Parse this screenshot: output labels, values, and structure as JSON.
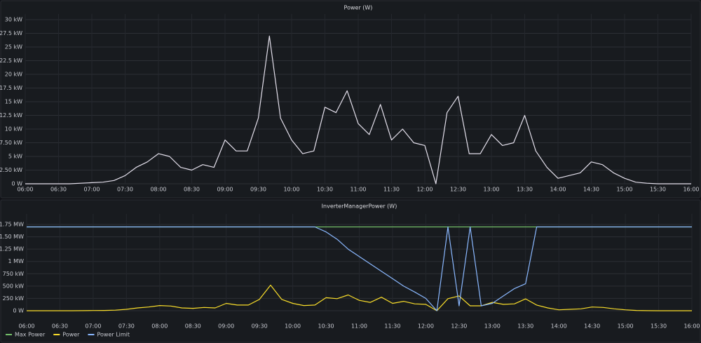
{
  "chart_data": [
    {
      "type": "line",
      "title": "Power (W)",
      "x": [
        "06:00",
        "06:10",
        "06:20",
        "06:30",
        "06:40",
        "06:50",
        "07:00",
        "07:10",
        "07:20",
        "07:30",
        "07:40",
        "07:50",
        "08:00",
        "08:10",
        "08:20",
        "08:30",
        "08:40",
        "08:50",
        "09:00",
        "09:10",
        "09:20",
        "09:30",
        "09:40",
        "09:50",
        "10:00",
        "10:10",
        "10:20",
        "10:30",
        "10:40",
        "10:50",
        "11:00",
        "11:10",
        "11:20",
        "11:30",
        "11:40",
        "11:50",
        "12:00",
        "12:10",
        "12:20",
        "12:30",
        "12:40",
        "12:50",
        "13:00",
        "13:10",
        "13:20",
        "13:30",
        "13:40",
        "13:50",
        "14:00",
        "14:10",
        "14:20",
        "14:30",
        "14:40",
        "14:50",
        "15:00",
        "15:10",
        "15:20",
        "15:30",
        "15:40",
        "15:50",
        "16:00"
      ],
      "series": [
        {
          "color": "#e4e0ec",
          "values": [
            0,
            0,
            0,
            0,
            0,
            100,
            200,
            300,
            600,
            1500,
            3000,
            4000,
            5500,
            5000,
            3000,
            2500,
            3500,
            3000,
            8000,
            6000,
            6000,
            12000,
            27000,
            12000,
            8000,
            5500,
            6000,
            14000,
            13000,
            17000,
            11000,
            9000,
            14500,
            8000,
            10000,
            7500,
            7000,
            0,
            13000,
            16000,
            5500,
            5500,
            9000,
            7000,
            7500,
            12500,
            6000,
            3000,
            1000,
            1500,
            2000,
            4000,
            3500,
            2000,
            1000,
            300,
            100,
            0,
            0,
            0,
            0
          ]
        }
      ],
      "xlim": [
        "06:00",
        "16:00"
      ],
      "xticks": [
        "06:00",
        "06:30",
        "07:00",
        "07:30",
        "08:00",
        "08:30",
        "09:00",
        "09:30",
        "10:00",
        "10:30",
        "11:00",
        "11:30",
        "12:00",
        "12:30",
        "13:00",
        "13:30",
        "14:00",
        "14:30",
        "15:00",
        "15:30",
        "16:00"
      ],
      "ylim": [
        0,
        30000
      ],
      "yticks": [
        {
          "value": 0,
          "label": "0 W"
        },
        {
          "value": 2500,
          "label": "2.50 kW"
        },
        {
          "value": 5000,
          "label": "5 kW"
        },
        {
          "value": 7500,
          "label": "7.50 kW"
        },
        {
          "value": 10000,
          "label": "10 kW"
        },
        {
          "value": 12500,
          "label": "12.5 kW"
        },
        {
          "value": 15000,
          "label": "15 kW"
        },
        {
          "value": 17500,
          "label": "17.5 kW"
        },
        {
          "value": 20000,
          "label": "20 kW"
        },
        {
          "value": 22500,
          "label": "22.5 kW"
        },
        {
          "value": 25000,
          "label": "25 kW"
        },
        {
          "value": 27500,
          "label": "27.5 kW"
        },
        {
          "value": 30000,
          "label": "30 kW"
        }
      ],
      "grid": true
    },
    {
      "type": "line",
      "title": "InverterManagerPower (W)",
      "x": [
        "06:00",
        "06:10",
        "06:20",
        "06:30",
        "06:40",
        "06:50",
        "07:00",
        "07:10",
        "07:20",
        "07:30",
        "07:40",
        "07:50",
        "08:00",
        "08:10",
        "08:20",
        "08:30",
        "08:40",
        "08:50",
        "09:00",
        "09:10",
        "09:20",
        "09:30",
        "09:40",
        "09:50",
        "10:00",
        "10:10",
        "10:20",
        "10:30",
        "10:40",
        "10:50",
        "11:00",
        "11:10",
        "11:20",
        "11:30",
        "11:40",
        "11:50",
        "12:00",
        "12:10",
        "12:20",
        "12:30",
        "12:40",
        "12:50",
        "13:00",
        "13:10",
        "13:20",
        "13:30",
        "13:40",
        "13:50",
        "14:00",
        "14:10",
        "14:20",
        "14:30",
        "14:40",
        "14:50",
        "15:00",
        "15:10",
        "15:20",
        "15:30",
        "15:40",
        "15:50",
        "16:00"
      ],
      "series": [
        {
          "name": "Max Power",
          "color": "#73bf69",
          "values": [
            1700000,
            1700000,
            1700000,
            1700000,
            1700000,
            1700000,
            1700000,
            1700000,
            1700000,
            1700000,
            1700000,
            1700000,
            1700000,
            1700000,
            1700000,
            1700000,
            1700000,
            1700000,
            1700000,
            1700000,
            1700000,
            1700000,
            1700000,
            1700000,
            1700000,
            1700000,
            1700000,
            1700000,
            1700000,
            1700000,
            1700000,
            1700000,
            1700000,
            1700000,
            1700000,
            1700000,
            1700000,
            1700000,
            1700000,
            1700000,
            1700000,
            1700000,
            1700000,
            1700000,
            1700000,
            1700000,
            1700000,
            1700000,
            1700000,
            1700000,
            1700000,
            1700000,
            1700000,
            1700000,
            1700000,
            1700000,
            1700000,
            1700000,
            1700000,
            1700000,
            1700000
          ]
        },
        {
          "name": "Power",
          "color": "#fade2a",
          "values": [
            0,
            0,
            0,
            0,
            0,
            2000,
            4000,
            6000,
            12000,
            28000,
            57000,
            76000,
            105000,
            95000,
            57000,
            48000,
            67000,
            57000,
            150000,
            115000,
            115000,
            230000,
            520000,
            230000,
            150000,
            105000,
            115000,
            265000,
            245000,
            320000,
            210000,
            170000,
            275000,
            150000,
            190000,
            140000,
            130000,
            0,
            245000,
            300000,
            100000,
            100000,
            170000,
            130000,
            140000,
            240000,
            115000,
            57000,
            19000,
            28000,
            38000,
            76000,
            67000,
            38000,
            19000,
            6000,
            2000,
            0,
            0,
            0,
            0
          ]
        },
        {
          "name": "Power Limit",
          "color": "#8ab8ff",
          "values": [
            1700000,
            1700000,
            1700000,
            1700000,
            1700000,
            1700000,
            1700000,
            1700000,
            1700000,
            1700000,
            1700000,
            1700000,
            1700000,
            1700000,
            1700000,
            1700000,
            1700000,
            1700000,
            1700000,
            1700000,
            1700000,
            1700000,
            1700000,
            1700000,
            1700000,
            1700000,
            1700000,
            1600000,
            1450000,
            1250000,
            1100000,
            950000,
            800000,
            650000,
            500000,
            380000,
            250000,
            0,
            1700000,
            100000,
            1700000,
            100000,
            150000,
            300000,
            450000,
            550000,
            1700000,
            1700000,
            1700000,
            1700000,
            1700000,
            1700000,
            1700000,
            1700000,
            1700000,
            1700000,
            1700000,
            1700000,
            1700000,
            1700000,
            1700000
          ]
        }
      ],
      "xlim": [
        "06:00",
        "16:00"
      ],
      "xticks": [
        "06:00",
        "06:30",
        "07:00",
        "07:30",
        "08:00",
        "08:30",
        "09:00",
        "09:30",
        "10:00",
        "10:30",
        "11:00",
        "11:30",
        "12:00",
        "12:30",
        "13:00",
        "13:30",
        "14:00",
        "14:30",
        "15:00",
        "15:30",
        "16:00"
      ],
      "ylim": [
        0,
        1850000
      ],
      "yticks": [
        {
          "value": 0,
          "label": "0 W"
        },
        {
          "value": 250000,
          "label": "250 kW"
        },
        {
          "value": 500000,
          "label": "500 kW"
        },
        {
          "value": 750000,
          "label": "750 kW"
        },
        {
          "value": 1000000,
          "label": "1 MW"
        },
        {
          "value": 1250000,
          "label": "1.25 MW"
        },
        {
          "value": 1500000,
          "label": "1.50 MW"
        },
        {
          "value": 1750000,
          "label": "1.75 MW"
        }
      ],
      "grid": true
    }
  ]
}
